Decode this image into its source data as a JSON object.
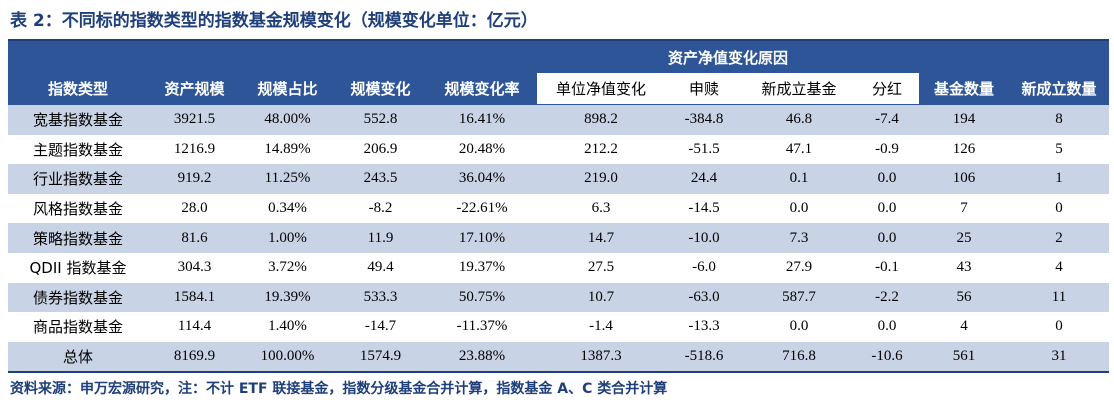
{
  "title": "表 2：不同标的指数类型的指数基金规模变化（规模变化单位：亿元）",
  "group_header": "资产净值变化原因",
  "headers": [
    "指数类型",
    "资产规模",
    "规模占比",
    "规模变化",
    "规模变化率",
    "单位净值变化",
    "申赎",
    "新成立基金",
    "分红",
    "基金数量",
    "新成立数量"
  ],
  "rows": [
    [
      "宽基指数基金",
      "3921.5",
      "48.00%",
      "552.8",
      "16.41%",
      "898.2",
      "-384.8",
      "46.8",
      "-7.4",
      "194",
      "8"
    ],
    [
      "主题指数基金",
      "1216.9",
      "14.89%",
      "206.9",
      "20.48%",
      "212.2",
      "-51.5",
      "47.1",
      "-0.9",
      "126",
      "5"
    ],
    [
      "行业指数基金",
      "919.2",
      "11.25%",
      "243.5",
      "36.04%",
      "219.0",
      "24.4",
      "0.1",
      "0.0",
      "106",
      "1"
    ],
    [
      "风格指数基金",
      "28.0",
      "0.34%",
      "-8.2",
      "-22.61%",
      "6.3",
      "-14.5",
      "0.0",
      "0.0",
      "7",
      "0"
    ],
    [
      "策略指数基金",
      "81.6",
      "1.00%",
      "11.9",
      "17.10%",
      "14.7",
      "-10.0",
      "7.3",
      "0.0",
      "25",
      "2"
    ],
    [
      "QDII 指数基金",
      "304.3",
      "3.72%",
      "49.4",
      "19.37%",
      "27.5",
      "-6.0",
      "27.9",
      "-0.1",
      "43",
      "4"
    ],
    [
      "债券指数基金",
      "1584.1",
      "19.39%",
      "533.3",
      "50.75%",
      "10.7",
      "-63.0",
      "587.7",
      "-2.2",
      "56",
      "11"
    ],
    [
      "商品指数基金",
      "114.4",
      "1.40%",
      "-14.7",
      "-11.37%",
      "-1.4",
      "-13.3",
      "0.0",
      "0.0",
      "4",
      "0"
    ],
    [
      "总体",
      "8169.9",
      "100.00%",
      "1574.9",
      "23.88%",
      "1387.3",
      "-518.6",
      "716.8",
      "-10.6",
      "561",
      "31"
    ]
  ],
  "source": "资料来源：申万宏源研究，注：不计 ETF 联接基金，指数分级基金合并计算，指数基金 A、C 类合并计算"
}
